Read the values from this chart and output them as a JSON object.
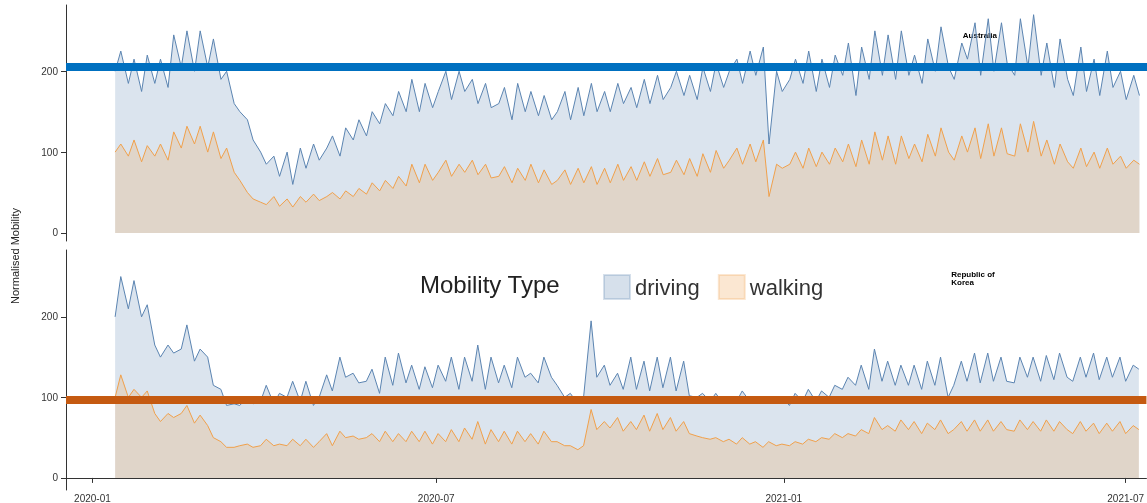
{
  "chart_data": [
    {
      "type": "area",
      "ylabel": "Normalised Mobility",
      "annotations": [
        "Australia"
      ],
      "xlim": [
        "2019-12-18",
        "2021-07-12"
      ],
      "xticks": [
        "2020-01",
        "2020-07",
        "2021-01",
        "2021-07"
      ],
      "ylim": [
        -10,
        282
      ],
      "yticks": [
        0,
        100,
        200
      ],
      "tick_labels": "y",
      "grid": false,
      "legend": false,
      "marker": "none",
      "ref_lines": [
        {
          "axis": "y",
          "value": 205,
          "color": "#0070c0"
        }
      ],
      "x": [
        "2020-01-13",
        "2020-01-16",
        "2020-01-20",
        "2020-01-23",
        "2020-01-27",
        "2020-01-30",
        "2020-02-03",
        "2020-02-06",
        "2020-02-10",
        "2020-02-13",
        "2020-02-17",
        "2020-02-20",
        "2020-02-24",
        "2020-02-27",
        "2020-03-02",
        "2020-03-05",
        "2020-03-09",
        "2020-03-12",
        "2020-03-16",
        "2020-03-19",
        "2020-03-23",
        "2020-03-26",
        "2020-03-30",
        "2020-04-02",
        "2020-04-06",
        "2020-04-09",
        "2020-04-13",
        "2020-04-16",
        "2020-04-20",
        "2020-04-23",
        "2020-04-27",
        "2020-04-30",
        "2020-05-04",
        "2020-05-07",
        "2020-05-11",
        "2020-05-14",
        "2020-05-18",
        "2020-05-21",
        "2020-05-25",
        "2020-05-28",
        "2020-06-01",
        "2020-06-04",
        "2020-06-08",
        "2020-06-11",
        "2020-06-15",
        "2020-06-18",
        "2020-06-22",
        "2020-06-25",
        "2020-06-29",
        "2020-07-02",
        "2020-07-06",
        "2020-07-09",
        "2020-07-13",
        "2020-07-16",
        "2020-07-20",
        "2020-07-23",
        "2020-07-27",
        "2020-07-30",
        "2020-08-03",
        "2020-08-06",
        "2020-08-10",
        "2020-08-13",
        "2020-08-17",
        "2020-08-20",
        "2020-08-24",
        "2020-08-27",
        "2020-08-31",
        "2020-09-03",
        "2020-09-07",
        "2020-09-10",
        "2020-09-14",
        "2020-09-17",
        "2020-09-21",
        "2020-09-24",
        "2020-09-28",
        "2020-10-01",
        "2020-10-05",
        "2020-10-08",
        "2020-10-12",
        "2020-10-15",
        "2020-10-19",
        "2020-10-22",
        "2020-10-26",
        "2020-10-29",
        "2020-11-02",
        "2020-11-05",
        "2020-11-09",
        "2020-11-12",
        "2020-11-16",
        "2020-11-19",
        "2020-11-23",
        "2020-11-26",
        "2020-11-30",
        "2020-12-03",
        "2020-12-07",
        "2020-12-10",
        "2020-12-14",
        "2020-12-17",
        "2020-12-21",
        "2020-12-24",
        "2020-12-28",
        "2020-12-31",
        "2021-01-04",
        "2021-01-07",
        "2021-01-11",
        "2021-01-14",
        "2021-01-18",
        "2021-01-21",
        "2021-01-25",
        "2021-01-28",
        "2021-02-01",
        "2021-02-04",
        "2021-02-08",
        "2021-02-11",
        "2021-02-15",
        "2021-02-18",
        "2021-02-22",
        "2021-02-25",
        "2021-03-01",
        "2021-03-04",
        "2021-03-08",
        "2021-03-11",
        "2021-03-15",
        "2021-03-18",
        "2021-03-22",
        "2021-03-25",
        "2021-03-29",
        "2021-04-01",
        "2021-04-05",
        "2021-04-08",
        "2021-04-12",
        "2021-04-15",
        "2021-04-19",
        "2021-04-22",
        "2021-04-26",
        "2021-04-29",
        "2021-05-03",
        "2021-05-06",
        "2021-05-10",
        "2021-05-13",
        "2021-05-17",
        "2021-05-20",
        "2021-05-24",
        "2021-05-27",
        "2021-05-31",
        "2021-06-03",
        "2021-06-07",
        "2021-06-10",
        "2021-06-14",
        "2021-06-17",
        "2021-06-21",
        "2021-06-24",
        "2021-06-28",
        "2021-07-01",
        "2021-07-05",
        "2021-07-08"
      ],
      "series": [
        {
          "color": "#5b84b1",
          "values": [
            200,
            225,
            185,
            215,
            175,
            220,
            185,
            215,
            180,
            245,
            205,
            250,
            200,
            250,
            205,
            240,
            190,
            200,
            160,
            150,
            140,
            115,
            100,
            85,
            95,
            70,
            100,
            60,
            105,
            80,
            110,
            90,
            105,
            120,
            95,
            130,
            115,
            140,
            120,
            150,
            135,
            160,
            145,
            175,
            150,
            190,
            150,
            185,
            155,
            175,
            200,
            165,
            200,
            175,
            190,
            160,
            185,
            155,
            160,
            180,
            140,
            185,
            150,
            175,
            145,
            170,
            140,
            150,
            175,
            140,
            180,
            145,
            185,
            150,
            175,
            150,
            185,
            160,
            180,
            155,
            190,
            160,
            195,
            165,
            180,
            200,
            170,
            195,
            165,
            205,
            175,
            210,
            180,
            200,
            215,
            185,
            225,
            195,
            230,
            110,
            200,
            175,
            190,
            215,
            185,
            225,
            175,
            215,
            180,
            220,
            195,
            235,
            170,
            230,
            190,
            250,
            195,
            245,
            190,
            250,
            195,
            220,
            185,
            240,
            200,
            255,
            205,
            190,
            235,
            215,
            260,
            195,
            265,
            200,
            260,
            210,
            195,
            265,
            205,
            270,
            195,
            235,
            180,
            240,
            190,
            170,
            230,
            175,
            215,
            170,
            225,
            180,
            200,
            165,
            195,
            170
          ]
        },
        {
          "color": "#f0a04b",
          "values": [
            100,
            110,
            95,
            115,
            88,
            108,
            95,
            110,
            90,
            125,
            105,
            132,
            110,
            132,
            100,
            125,
            92,
            105,
            75,
            65,
            50,
            42,
            38,
            35,
            45,
            33,
            42,
            32,
            45,
            38,
            48,
            40,
            45,
            50,
            42,
            52,
            45,
            55,
            48,
            62,
            52,
            65,
            55,
            70,
            58,
            85,
            62,
            85,
            65,
            75,
            90,
            70,
            85,
            75,
            90,
            72,
            85,
            68,
            70,
            82,
            62,
            80,
            65,
            85,
            62,
            78,
            60,
            65,
            78,
            60,
            80,
            62,
            82,
            60,
            80,
            62,
            85,
            65,
            82,
            65,
            88,
            70,
            92,
            72,
            75,
            90,
            72,
            92,
            70,
            98,
            75,
            102,
            80,
            90,
            105,
            85,
            110,
            88,
            115,
            45,
            85,
            80,
            85,
            100,
            80,
            105,
            82,
            100,
            85,
            105,
            88,
            110,
            82,
            115,
            85,
            125,
            90,
            120,
            85,
            120,
            92,
            110,
            88,
            122,
            95,
            130,
            100,
            90,
            120,
            100,
            130,
            92,
            135,
            95,
            130,
            98,
            95,
            135,
            100,
            138,
            95,
            115,
            85,
            110,
            88,
            80,
            105,
            82,
            100,
            80,
            105,
            85,
            95,
            80,
            90,
            85
          ]
        }
      ]
    },
    {
      "type": "area",
      "annotations": [
        "Republic of Korea"
      ],
      "legend_title": "Mobility Type",
      "xlim": [
        "2019-12-18",
        "2021-07-12"
      ],
      "xticks": [
        "2020-01",
        "2020-07",
        "2021-01",
        "2021-07"
      ],
      "ylim": [
        -15,
        283
      ],
      "yticks": [
        0,
        100,
        200
      ],
      "grid": false,
      "legend": "top",
      "marker": "none",
      "ref_lines": [
        {
          "axis": "y",
          "value": 97,
          "color": "#c55a11"
        }
      ],
      "x": [
        "2020-01-13",
        "2020-01-16",
        "2020-01-20",
        "2020-01-23",
        "2020-01-27",
        "2020-01-30",
        "2020-02-03",
        "2020-02-06",
        "2020-02-10",
        "2020-02-13",
        "2020-02-17",
        "2020-02-20",
        "2020-02-24",
        "2020-02-27",
        "2020-03-02",
        "2020-03-05",
        "2020-03-09",
        "2020-03-12",
        "2020-03-16",
        "2020-03-19",
        "2020-03-23",
        "2020-03-26",
        "2020-03-30",
        "2020-04-02",
        "2020-04-06",
        "2020-04-09",
        "2020-04-13",
        "2020-04-16",
        "2020-04-20",
        "2020-04-23",
        "2020-04-27",
        "2020-04-30",
        "2020-05-04",
        "2020-05-07",
        "2020-05-11",
        "2020-05-14",
        "2020-05-18",
        "2020-05-21",
        "2020-05-25",
        "2020-05-28",
        "2020-06-01",
        "2020-06-04",
        "2020-06-08",
        "2020-06-11",
        "2020-06-15",
        "2020-06-18",
        "2020-06-22",
        "2020-06-25",
        "2020-06-29",
        "2020-07-02",
        "2020-07-06",
        "2020-07-09",
        "2020-07-13",
        "2020-07-16",
        "2020-07-20",
        "2020-07-23",
        "2020-07-27",
        "2020-07-30",
        "2020-08-03",
        "2020-08-06",
        "2020-08-10",
        "2020-08-13",
        "2020-08-17",
        "2020-08-20",
        "2020-08-24",
        "2020-08-27",
        "2020-08-31",
        "2020-09-03",
        "2020-09-07",
        "2020-09-10",
        "2020-09-14",
        "2020-09-17",
        "2020-09-21",
        "2020-09-24",
        "2020-09-28",
        "2020-10-01",
        "2020-10-05",
        "2020-10-08",
        "2020-10-12",
        "2020-10-15",
        "2020-10-19",
        "2020-10-22",
        "2020-10-26",
        "2020-10-29",
        "2020-11-02",
        "2020-11-05",
        "2020-11-09",
        "2020-11-12",
        "2020-11-16",
        "2020-11-19",
        "2020-11-23",
        "2020-11-26",
        "2020-11-30",
        "2020-12-03",
        "2020-12-07",
        "2020-12-10",
        "2020-12-14",
        "2020-12-17",
        "2020-12-21",
        "2020-12-24",
        "2020-12-28",
        "2020-12-31",
        "2021-01-04",
        "2021-01-07",
        "2021-01-11",
        "2021-01-14",
        "2021-01-18",
        "2021-01-21",
        "2021-01-25",
        "2021-01-28",
        "2021-02-01",
        "2021-02-04",
        "2021-02-08",
        "2021-02-11",
        "2021-02-15",
        "2021-02-18",
        "2021-02-22",
        "2021-02-25",
        "2021-03-01",
        "2021-03-04",
        "2021-03-08",
        "2021-03-11",
        "2021-03-15",
        "2021-03-18",
        "2021-03-22",
        "2021-03-25",
        "2021-03-29",
        "2021-04-01",
        "2021-04-05",
        "2021-04-08",
        "2021-04-12",
        "2021-04-15",
        "2021-04-19",
        "2021-04-22",
        "2021-04-26",
        "2021-04-29",
        "2021-05-03",
        "2021-05-06",
        "2021-05-10",
        "2021-05-13",
        "2021-05-17",
        "2021-05-20",
        "2021-05-24",
        "2021-05-27",
        "2021-05-31",
        "2021-06-03",
        "2021-06-07",
        "2021-06-10",
        "2021-06-14",
        "2021-06-17",
        "2021-06-21",
        "2021-06-24",
        "2021-06-28",
        "2021-07-01",
        "2021-07-05",
        "2021-07-08"
      ],
      "series": [
        {
          "name": "driving",
          "color": "#5b84b1",
          "values": [
            200,
            250,
            210,
            245,
            200,
            215,
            165,
            150,
            165,
            155,
            160,
            190,
            145,
            160,
            150,
            115,
            110,
            90,
            92,
            90,
            100,
            92,
            95,
            115,
            92,
            105,
            100,
            120,
            95,
            120,
            90,
            100,
            128,
            108,
            150,
            125,
            130,
            118,
            120,
            135,
            105,
            150,
            115,
            155,
            118,
            140,
            110,
            138,
            112,
            140,
            120,
            150,
            110,
            150,
            120,
            165,
            110,
            150,
            118,
            140,
            112,
            150,
            125,
            130,
            118,
            150,
            125,
            115,
            100,
            105,
            92,
            100,
            195,
            125,
            140,
            115,
            130,
            110,
            150,
            110,
            145,
            108,
            150,
            112,
            150,
            108,
            145,
            102,
            100,
            105,
            95,
            105,
            92,
            100,
            95,
            108,
            95,
            100,
            92,
            100,
            95,
            100,
            90,
            105,
            95,
            110,
            95,
            108,
            100,
            115,
            110,
            125,
            115,
            140,
            110,
            160,
            120,
            145,
            115,
            140,
            115,
            140,
            110,
            145,
            115,
            150,
            100,
            115,
            145,
            120,
            155,
            118,
            155,
            120,
            150,
            120,
            118,
            150,
            125,
            150,
            120,
            152,
            122,
            155,
            125,
            120,
            150,
            125,
            155,
            122,
            150,
            125,
            150,
            120,
            140,
            135
          ]
        },
        {
          "name": "walking",
          "color": "#f0a04b",
          "values": [
            100,
            128,
            100,
            110,
            100,
            108,
            80,
            70,
            80,
            75,
            80,
            90,
            68,
            78,
            65,
            50,
            45,
            38,
            38,
            40,
            42,
            38,
            40,
            48,
            40,
            42,
            40,
            48,
            40,
            48,
            38,
            45,
            55,
            40,
            58,
            50,
            52,
            48,
            50,
            55,
            45,
            58,
            45,
            55,
            45,
            58,
            45,
            58,
            42,
            55,
            45,
            60,
            45,
            62,
            48,
            70,
            42,
            60,
            45,
            58,
            42,
            58,
            45,
            55,
            42,
            58,
            45,
            45,
            40,
            40,
            35,
            40,
            85,
            60,
            70,
            62,
            75,
            58,
            70,
            60,
            78,
            58,
            80,
            60,
            75,
            58,
            70,
            55,
            52,
            50,
            48,
            50,
            45,
            48,
            42,
            50,
            42,
            45,
            38,
            45,
            40,
            42,
            40,
            45,
            42,
            48,
            45,
            50,
            48,
            55,
            50,
            55,
            52,
            60,
            55,
            75,
            60,
            65,
            58,
            72,
            60,
            70,
            55,
            68,
            60,
            72,
            55,
            60,
            70,
            58,
            72,
            58,
            72,
            58,
            70,
            60,
            58,
            72,
            60,
            70,
            58,
            72,
            58,
            70,
            60,
            55,
            70,
            58,
            68,
            55,
            68,
            58,
            70,
            55,
            65,
            60
          ]
        }
      ]
    }
  ]
}
